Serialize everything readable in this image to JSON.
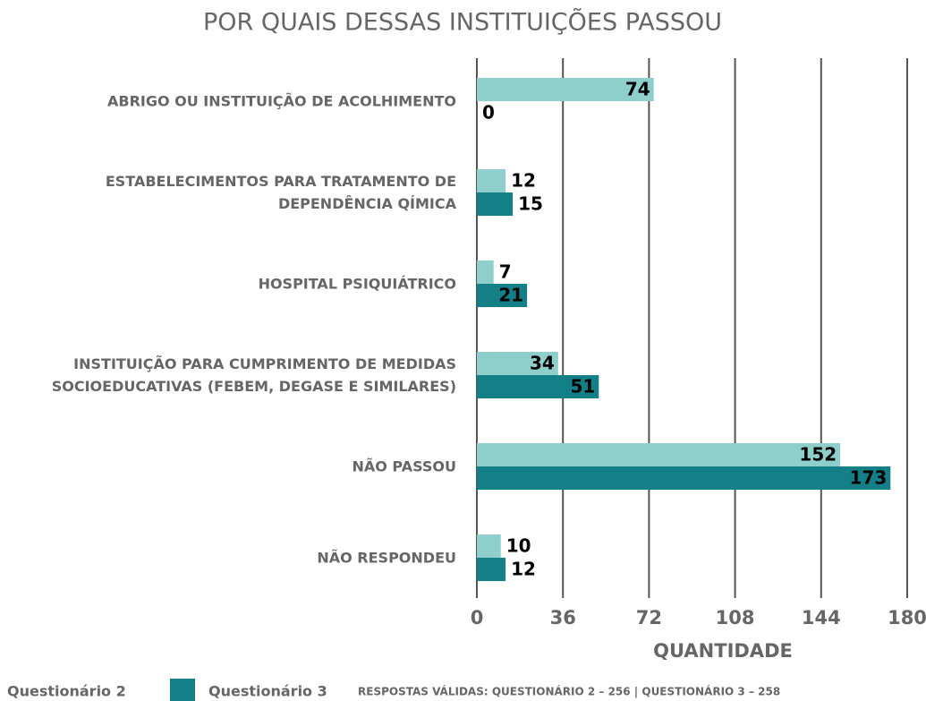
{
  "chart_data": {
    "type": "barh",
    "title": "POR QUAIS DESSAS INSTITUIÇÕES PASSOU",
    "categories": [
      "ABRIGO OU INSTITUIÇÃO DE ACOLHIMENTO",
      "ESTABELECIMENTOS PARA TRATAMENTO DE\nDEPENDÊNCIA QÍMICA",
      "HOSPITAL PSIQUIÁTRICO",
      "INSTITUIÇÃO PARA CUMPRIMENTO DE MEDIDAS\nSOCIOEDUCATIVAS (FEBEM, DEGASE E SIMILARES)",
      "NÃO PASSOU",
      "NÃO RESPONDEU"
    ],
    "series": [
      {
        "name": "Questionário 2",
        "color": "#8ecfcc",
        "values": [
          74,
          12,
          7,
          34,
          152,
          10
        ]
      },
      {
        "name": "Questionário 3",
        "color": "#137f87",
        "values": [
          0,
          15,
          21,
          51,
          173,
          12
        ]
      }
    ],
    "xlim": [
      0,
      180
    ],
    "xticks": [
      0,
      36,
      72,
      108,
      144,
      180
    ],
    "grid": true,
    "xlabel": "QUANTIDADE",
    "note": "RESPOSTAS VÁLIDAS: QUESTIONÁRIO 2 – 256 | QUESTIONÁRIO 3 – 258"
  }
}
